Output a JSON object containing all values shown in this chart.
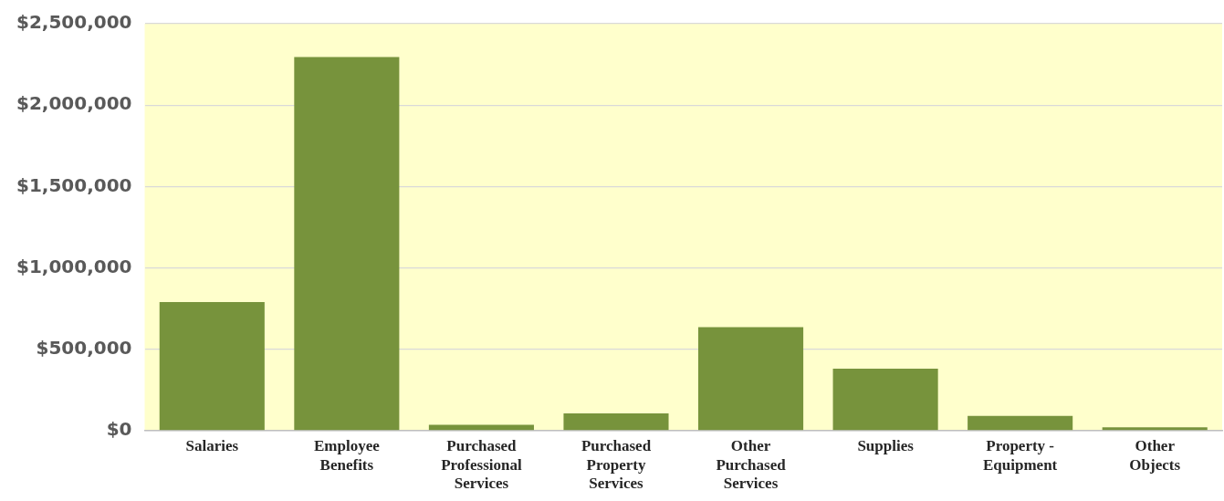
{
  "chart_data": {
    "type": "bar",
    "categories": [
      "Salaries",
      "Employee Benefits",
      "Purchased Professional Services",
      "Purchased Property Services",
      "Other Purchased Services",
      "Supplies",
      "Property - Equipment",
      "Other Objects"
    ],
    "values": [
      790000,
      2295000,
      35000,
      105000,
      635000,
      380000,
      90000,
      20000
    ],
    "color": "#77933c",
    "ylim": [
      0,
      2500000
    ],
    "yticks": [
      {
        "value": 0,
        "label": "$0"
      },
      {
        "value": 500000,
        "label": "$500,000"
      },
      {
        "value": 1000000,
        "label": "$1,000,000"
      },
      {
        "value": 1500000,
        "label": "$1,500,000"
      },
      {
        "value": 2000000,
        "label": "$2,000,000"
      },
      {
        "value": 2500000,
        "label": "$2,500,000"
      }
    ],
    "grid": "y",
    "legend": false
  }
}
